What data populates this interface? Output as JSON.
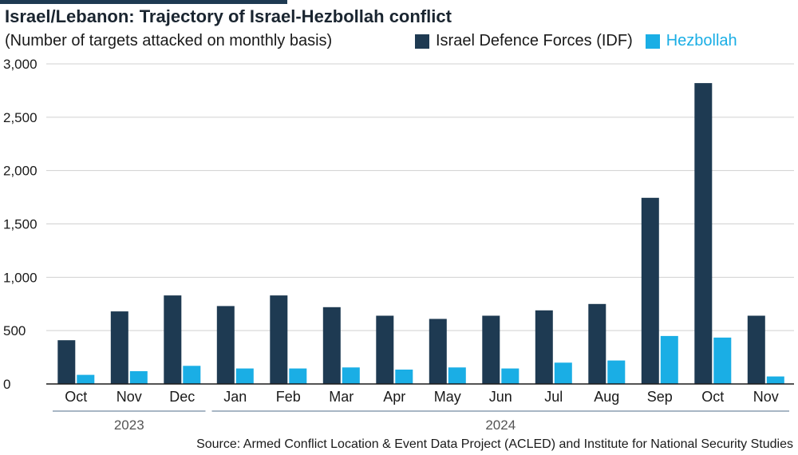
{
  "title": "Israel/Lebanon: Trajectory of Israel-Hezbollah conflict",
  "subtitle": "(Number of targets attacked on monthly basis)",
  "source": "Source: Armed Conflict Location & Event Data Project (ACLED) and Institute for National Security Studies",
  "colors": {
    "idf": "#1e3a52",
    "hezbollah": "#1aaee5",
    "grid": "#d0d0d0",
    "axis": "#1a1a1a",
    "year_line": "#a8b6c4",
    "topbar": "#1e3a52"
  },
  "chart_data": {
    "type": "bar",
    "categories": [
      "Oct",
      "Nov",
      "Dec",
      "Jan",
      "Feb",
      "Mar",
      "Apr",
      "May",
      "Jun",
      "Jul",
      "Aug",
      "Sep",
      "Oct",
      "Nov"
    ],
    "year_groups": [
      {
        "label": "2023",
        "from": 0,
        "to": 2
      },
      {
        "label": "2024",
        "from": 3,
        "to": 13
      }
    ],
    "series": [
      {
        "name": "Israel Defence Forces (IDF)",
        "key": "idf",
        "values": [
          410,
          680,
          830,
          730,
          830,
          720,
          640,
          610,
          640,
          690,
          750,
          1745,
          2820,
          640
        ]
      },
      {
        "name": "Hezbollah",
        "key": "hezbollah",
        "values": [
          85,
          120,
          170,
          145,
          145,
          155,
          135,
          155,
          145,
          200,
          220,
          450,
          435,
          70
        ]
      }
    ],
    "yticks": [
      0,
      500,
      1000,
      1500,
      2000,
      2500,
      3000
    ],
    "ytick_labels": [
      "0",
      "500",
      "1,000",
      "1,500",
      "2,000",
      "2,500",
      "3,000"
    ],
    "ylim": [
      0,
      3000
    ],
    "grid": true,
    "legend_position": "top"
  }
}
